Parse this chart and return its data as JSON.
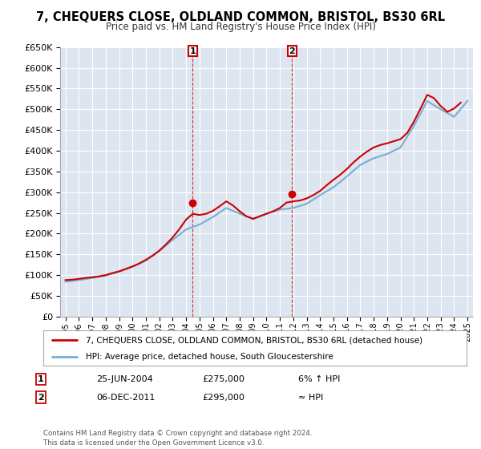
{
  "title": "7, CHEQUERS CLOSE, OLDLAND COMMON, BRISTOL, BS30 6RL",
  "subtitle": "Price paid vs. HM Land Registry's House Price Index (HPI)",
  "legend_line1": "7, CHEQUERS CLOSE, OLDLAND COMMON, BRISTOL, BS30 6RL (detached house)",
  "legend_line2": "HPI: Average price, detached house, South Gloucestershire",
  "annotation1_date": "25-JUN-2004",
  "annotation1_price": "£275,000",
  "annotation1_hpi": "6% ↑ HPI",
  "annotation2_date": "06-DEC-2011",
  "annotation2_price": "£295,000",
  "annotation2_hpi": "≈ HPI",
  "footer": "Contains HM Land Registry data © Crown copyright and database right 2024.\nThis data is licensed under the Open Government Licence v3.0.",
  "ylim": [
    0,
    650000
  ],
  "yticks": [
    0,
    50000,
    100000,
    150000,
    200000,
    250000,
    300000,
    350000,
    400000,
    450000,
    500000,
    550000,
    600000,
    650000
  ],
  "background_color": "#ffffff",
  "plot_bg_color": "#dde5f0",
  "grid_color": "#ffffff",
  "red_color": "#cc0000",
  "blue_color": "#7aadd4",
  "hpi_years": [
    1995,
    1996,
    1997,
    1998,
    1999,
    2000,
    2001,
    2002,
    2003,
    2004,
    2005,
    2006,
    2007,
    2008,
    2009,
    2010,
    2011,
    2012,
    2013,
    2014,
    2015,
    2016,
    2017,
    2018,
    2019,
    2020,
    2021,
    2022,
    2023,
    2024,
    2025
  ],
  "hpi_values": [
    84000,
    88000,
    93000,
    99000,
    108000,
    120000,
    135000,
    158000,
    185000,
    210000,
    222000,
    240000,
    262000,
    248000,
    235000,
    248000,
    258000,
    262000,
    272000,
    293000,
    312000,
    338000,
    366000,
    382000,
    392000,
    408000,
    460000,
    520000,
    500000,
    482000,
    520000
  ],
  "price_years": [
    1995,
    1995.5,
    1996,
    1996.5,
    1997,
    1997.5,
    1998,
    1998.5,
    1999,
    1999.5,
    2000,
    2000.5,
    2001,
    2001.5,
    2002,
    2002.5,
    2003,
    2003.5,
    2004,
    2004.5,
    2005,
    2005.5,
    2006,
    2006.5,
    2007,
    2007.5,
    2008,
    2008.5,
    2009,
    2009.5,
    2010,
    2010.5,
    2011,
    2011.5,
    2012,
    2012.5,
    2013,
    2013.5,
    2014,
    2014.5,
    2015,
    2015.5,
    2016,
    2016.5,
    2017,
    2017.5,
    2018,
    2018.5,
    2019,
    2019.5,
    2020,
    2020.5,
    2021,
    2021.5,
    2022,
    2022.5,
    2023,
    2023.5,
    2024,
    2024.5
  ],
  "price_values": [
    88000,
    89000,
    91000,
    93000,
    95000,
    97000,
    100000,
    105000,
    109000,
    115000,
    121000,
    128000,
    137000,
    147000,
    159000,
    174000,
    191000,
    211000,
    234000,
    248000,
    245000,
    248000,
    255000,
    266000,
    278000,
    268000,
    254000,
    242000,
    236000,
    242000,
    248000,
    254000,
    262000,
    275000,
    278000,
    280000,
    285000,
    293000,
    303000,
    317000,
    330000,
    342000,
    356000,
    372000,
    386000,
    398000,
    408000,
    414000,
    418000,
    423000,
    428000,
    443000,
    470000,
    502000,
    535000,
    527000,
    508000,
    494000,
    502000,
    516000
  ],
  "sale1_year": 2004.5,
  "sale1_price": 275000,
  "sale2_year": 2011.92,
  "sale2_price": 295000,
  "xlim_start": 1994.6,
  "xlim_end": 2025.4
}
